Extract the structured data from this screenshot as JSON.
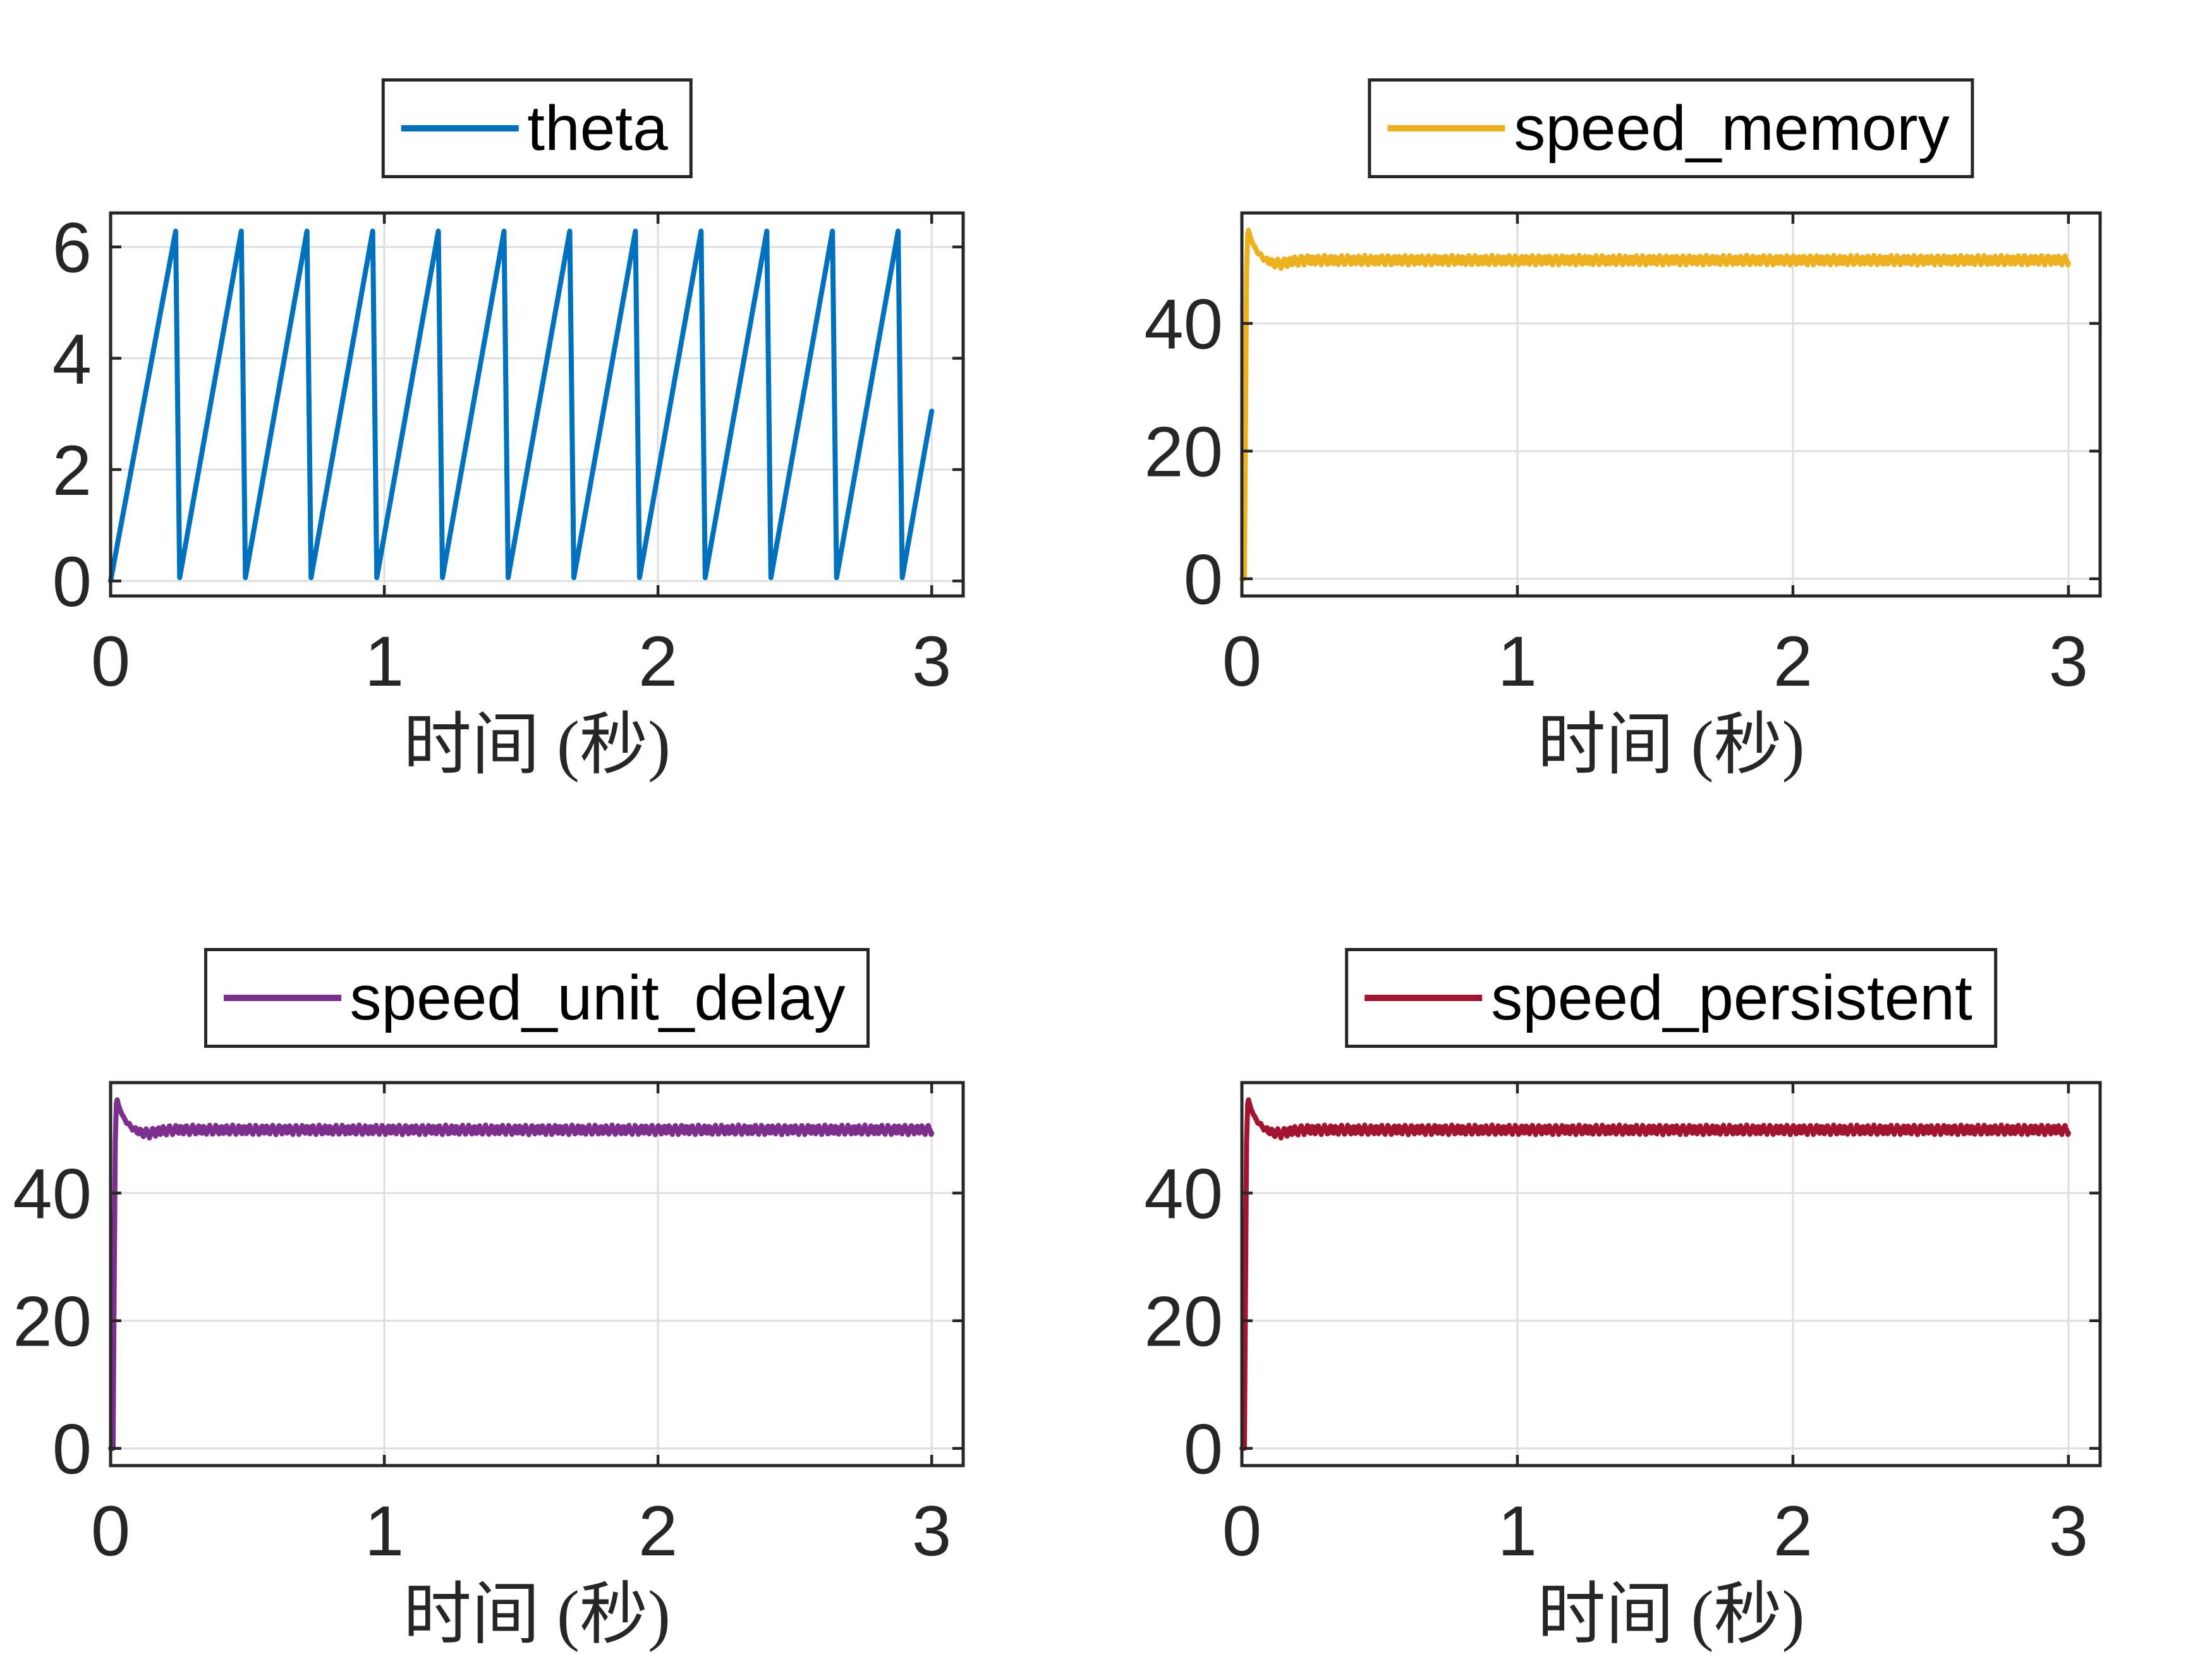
{
  "figure": {
    "background": "#ffffff",
    "axis_color": "#262626",
    "grid_color": "#dedede",
    "tick_label_color": "#262626",
    "xlabel": "时间 (秒)",
    "x_ticks": [
      "0",
      "1",
      "2",
      "3"
    ]
  },
  "chart_data": [
    {
      "id": "theta",
      "type": "line",
      "legend": "theta",
      "color": "#0072BD",
      "xlabel": "时间 (秒)",
      "x_ticks": [
        0,
        1,
        2,
        3
      ],
      "y_ticks": [
        0,
        2,
        4,
        6
      ],
      "xlim": [
        0,
        3.115
      ],
      "ylim": [
        -0.27,
        6.61
      ],
      "grid": true,
      "legend_position": "above-center",
      "signal": {
        "kind": "sawtooth",
        "description": "theta ramps 0 to 2*pi then resets; ~12.5 periods over 0-3 s",
        "start_point": [
          0,
          0
        ],
        "first_peak_t": 0.2375,
        "period_s": 0.24,
        "fall_s": 0.015,
        "peak_value": 6.283,
        "trough_value": 0.06,
        "end_point": [
          3.0,
          3.05
        ],
        "n_full_teeth": 12
      }
    },
    {
      "id": "speed_memory",
      "type": "line",
      "legend": "speed_memory",
      "color": "#EDB120",
      "xlabel": "时间 (秒)",
      "x_ticks": [
        0,
        1,
        2,
        3
      ],
      "y_ticks": [
        0,
        20,
        40
      ],
      "xlim": [
        0,
        3.115
      ],
      "ylim": [
        -2.7,
        57.3
      ],
      "grid": true,
      "legend_position": "above-center",
      "signal": {
        "kind": "step_overshoot",
        "description": "speed steps from 0, overshoots to ~54.6, settles at ~50 with small ripple",
        "rise_points": [
          [
            0,
            0
          ],
          [
            0.009,
            0
          ],
          [
            0.013,
            25
          ],
          [
            0.017,
            48
          ],
          [
            0.021,
            54.0
          ],
          [
            0.024,
            54.6
          ]
        ],
        "peak_value": 54.6,
        "peak_t": 0.024,
        "decay_tau_s": 0.028,
        "settle_value": 49.9,
        "undershoot": {
          "depth": 0.65,
          "center_t": 0.125,
          "width_s": 0.055
        },
        "ripple": {
          "amp1": 0.5,
          "period1_s": 0.021,
          "amp2": 0.25,
          "period2_s": 0.0077,
          "phase2": 2
        },
        "t_end": 3.0
      }
    },
    {
      "id": "speed_unit_delay",
      "type": "line",
      "legend": "speed_unit_delay",
      "color": "#7E2F8E",
      "xlabel": "时间 (秒)",
      "x_ticks": [
        0,
        1,
        2,
        3
      ],
      "y_ticks": [
        0,
        20,
        40
      ],
      "xlim": [
        0,
        3.115
      ],
      "ylim": [
        -2.7,
        57.3
      ],
      "grid": true,
      "legend_position": "above-center",
      "signal": {
        "kind": "step_overshoot",
        "description": "speed steps from 0, overshoots to ~54.6, settles at ~50 with small ripple",
        "rise_points": [
          [
            0,
            0
          ],
          [
            0.009,
            0
          ],
          [
            0.013,
            25
          ],
          [
            0.017,
            48
          ],
          [
            0.021,
            54.0
          ],
          [
            0.024,
            54.6
          ]
        ],
        "peak_value": 54.6,
        "peak_t": 0.024,
        "decay_tau_s": 0.028,
        "settle_value": 49.9,
        "undershoot": {
          "depth": 0.65,
          "center_t": 0.125,
          "width_s": 0.055
        },
        "ripple": {
          "amp1": 0.5,
          "period1_s": 0.021,
          "amp2": 0.25,
          "period2_s": 0.0077,
          "phase2": 2
        },
        "t_end": 3.0
      }
    },
    {
      "id": "speed_persistent",
      "type": "line",
      "legend": "speed_persistent",
      "color": "#A2142F",
      "xlabel": "时间 (秒)",
      "x_ticks": [
        0,
        1,
        2,
        3
      ],
      "y_ticks": [
        0,
        20,
        40
      ],
      "xlim": [
        0,
        3.115
      ],
      "ylim": [
        -2.7,
        57.3
      ],
      "grid": true,
      "legend_position": "above-center",
      "signal": {
        "kind": "step_overshoot",
        "description": "speed steps from 0, overshoots to ~54.6, settles at ~50 with small ripple",
        "rise_points": [
          [
            0,
            0
          ],
          [
            0.009,
            0
          ],
          [
            0.013,
            25
          ],
          [
            0.017,
            48
          ],
          [
            0.021,
            54.0
          ],
          [
            0.024,
            54.6
          ]
        ],
        "peak_value": 54.6,
        "peak_t": 0.024,
        "decay_tau_s": 0.028,
        "settle_value": 49.9,
        "undershoot": {
          "depth": 0.65,
          "center_t": 0.125,
          "width_s": 0.055
        },
        "ripple": {
          "amp1": 0.5,
          "period1_s": 0.021,
          "amp2": 0.25,
          "period2_s": 0.0077,
          "phase2": 2
        },
        "t_end": 3.0
      }
    }
  ]
}
